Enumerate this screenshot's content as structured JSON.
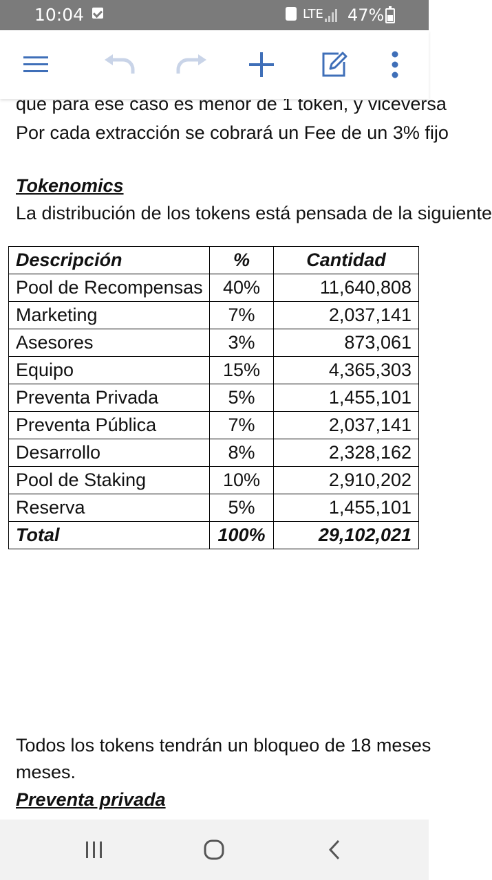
{
  "status_bar": {
    "time": "10:04",
    "network": "LTE",
    "battery": "47%"
  },
  "toolbar": {
    "icons": [
      "menu-icon",
      "undo-icon",
      "redo-icon",
      "add-icon",
      "edit-icon",
      "more-vert-icon"
    ],
    "accent_color": "#3f6fb8",
    "disabled_color": "#c9d4e8"
  },
  "document": {
    "line1": "que para ese caso es menor de 1 token, y viceversa",
    "line2": "Por cada extracción se cobrará un Fee de un 3% fijo",
    "tokenomics_heading": "Tokenomics",
    "tokenomics_intro": "La distribución de los tokens está pensada de la siguiente",
    "table": {
      "headers": [
        "Descripción",
        "%",
        "Cantidad"
      ],
      "rows": [
        {
          "desc": "Pool de Recompensas",
          "pct": "40%",
          "qty": "11,640,808"
        },
        {
          "desc": "Marketing",
          "pct": "7%",
          "qty": "2,037,141"
        },
        {
          "desc": "Asesores",
          "pct": "3%",
          "qty": "873,061"
        },
        {
          "desc": "Equipo",
          "pct": "15%",
          "qty": "4,365,303"
        },
        {
          "desc": "Preventa Privada",
          "pct": "5%",
          "qty": "1,455,101"
        },
        {
          "desc": "Preventa Pública",
          "pct": "7%",
          "qty": "2,037,141"
        },
        {
          "desc": "Desarrollo",
          "pct": "8%",
          "qty": "2,328,162"
        },
        {
          "desc": "Pool de Staking",
          "pct": "10%",
          "qty": "2,910,202"
        },
        {
          "desc": "Reserva",
          "pct": "5%",
          "qty": "1,455,101"
        }
      ],
      "total": {
        "desc": "Total",
        "pct": "100%",
        "qty": "29,102,021"
      }
    },
    "lock_line1": "Todos los tokens tendrán un bloqueo de 18 meses",
    "lock_line2": "meses.",
    "preventa_heading": "Preventa privada"
  },
  "nav_bar": {
    "icons": [
      "recent-apps-icon",
      "home-icon",
      "back-icon"
    ]
  }
}
